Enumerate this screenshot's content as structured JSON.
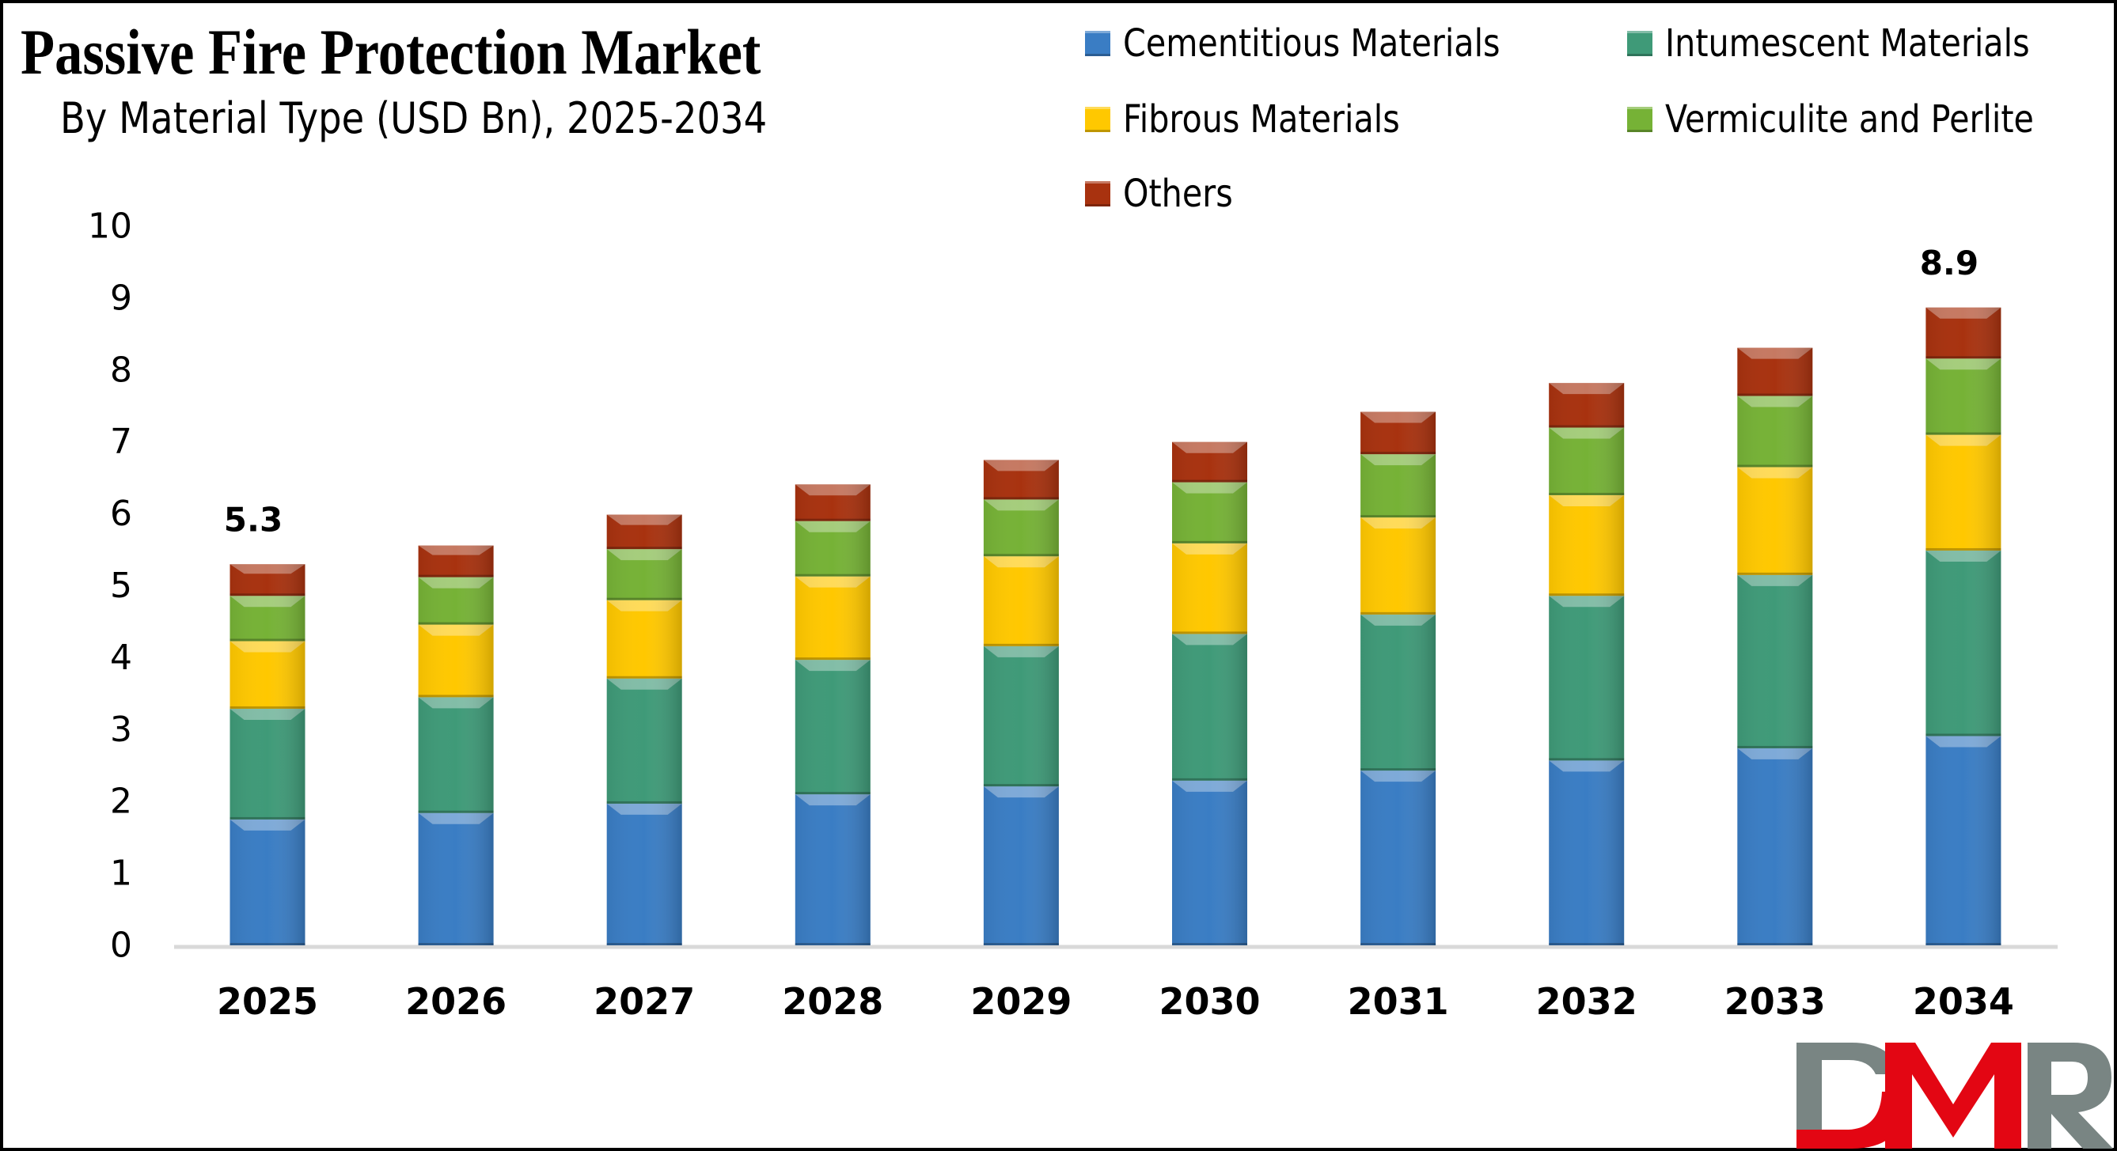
{
  "header": {
    "title": "Passive Fire Protection Market",
    "subtitle": "By Material Type (USD Bn), 2025-2034"
  },
  "legend": [
    {
      "label": "Cementitious Materials",
      "color": "#3A7DC4"
    },
    {
      "label": "Intumescent Materials",
      "color": "#3F9A78"
    },
    {
      "label": "Fibrous Materials",
      "color": "#FFC800"
    },
    {
      "label": "Vermiculite and Perlite",
      "color": "#76B236"
    },
    {
      "label": "Others",
      "color": "#A8320F"
    }
  ],
  "logo": {
    "text": "DMR",
    "colors": {
      "gray": "#798583",
      "red": "#E30613"
    }
  },
  "chart_data": {
    "type": "bar",
    "stacked": true,
    "title": "Passive Fire Protection Market",
    "subtitle": "By Material Type (USD Bn), 2025-2034",
    "xlabel": "",
    "ylabel": "",
    "ylim": [
      0,
      10
    ],
    "yticks": [
      0,
      1,
      2,
      3,
      4,
      5,
      6,
      7,
      8,
      9,
      10
    ],
    "grid": false,
    "legend_position": "top-right",
    "categories": [
      "2025",
      "2026",
      "2027",
      "2028",
      "2029",
      "2030",
      "2031",
      "2032",
      "2033",
      "2034"
    ],
    "series": [
      {
        "name": "Cementitious Materials",
        "color": "#3A7DC4",
        "values": [
          1.75,
          1.84,
          1.97,
          2.1,
          2.21,
          2.29,
          2.43,
          2.57,
          2.74,
          2.91
        ]
      },
      {
        "name": "Intumescent Materials",
        "color": "#3F9A78",
        "values": [
          1.54,
          1.61,
          1.74,
          1.87,
          1.95,
          2.04,
          2.17,
          2.29,
          2.41,
          2.58
        ]
      },
      {
        "name": "Fibrous Materials",
        "color": "#FFC800",
        "values": [
          0.94,
          1.01,
          1.09,
          1.16,
          1.25,
          1.26,
          1.35,
          1.4,
          1.5,
          1.61
        ]
      },
      {
        "name": "Vermiculite and Perlite",
        "color": "#76B236",
        "values": [
          0.63,
          0.66,
          0.71,
          0.77,
          0.79,
          0.85,
          0.88,
          0.94,
          0.99,
          1.06
        ]
      },
      {
        "name": "Others",
        "color": "#A8320F",
        "values": [
          0.44,
          0.44,
          0.48,
          0.51,
          0.55,
          0.56,
          0.59,
          0.62,
          0.67,
          0.71
        ]
      }
    ],
    "data_labels": [
      {
        "category": "2025",
        "text": "5.3"
      },
      {
        "category": "2034",
        "text": "8.9"
      }
    ]
  }
}
